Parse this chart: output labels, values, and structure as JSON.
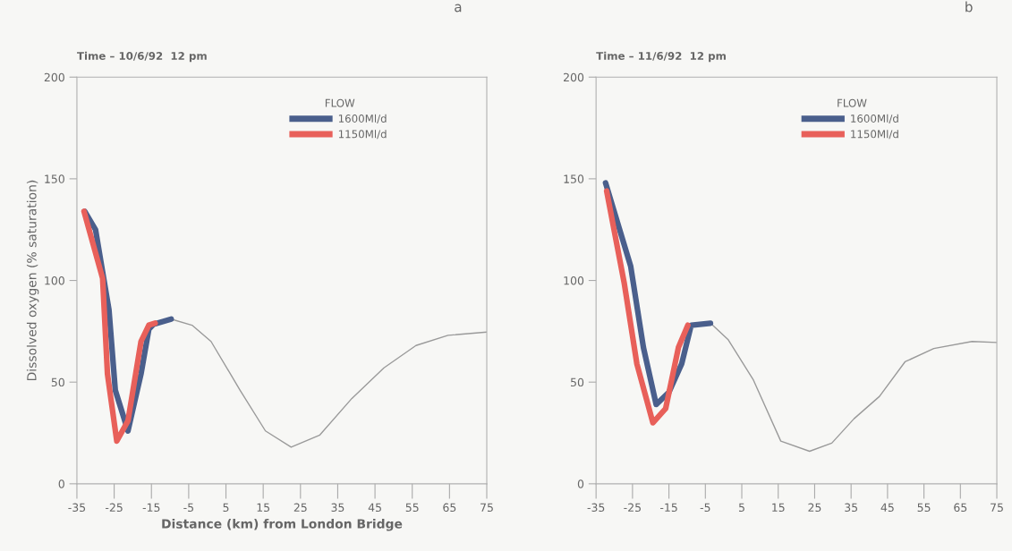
{
  "chart_data": [
    {
      "type": "line",
      "title": "a",
      "subtitle": "Time – 10/6/92  12 pm",
      "xlabel": "Distance (km) from London Bridge",
      "ylabel": "Dissolved oxygen (% saturation)",
      "legend_title": "FLOW",
      "legend": "top right",
      "grid": false,
      "xlim": [
        -35,
        75
      ],
      "xticks": [
        -35,
        -25,
        -15,
        -5,
        5,
        15,
        25,
        35,
        45,
        55,
        65,
        75
      ],
      "ylim": [
        0,
        200
      ],
      "yticks": [
        0,
        50,
        100,
        150,
        200
      ],
      "series": [
        {
          "color": "#9a9a9a",
          "x": [
            -9.7,
            -4.1,
            1,
            8.8,
            15.6,
            22.5,
            30.2,
            38.8,
            47.4,
            56,
            64.6,
            75
          ],
          "values": [
            81,
            78,
            70,
            46,
            26,
            18,
            24,
            42,
            57,
            68,
            73,
            74.6
          ]
        },
        {
          "name": "1600Ml/d",
          "color": "#4a5f8c",
          "x": [
            -32.9,
            -30,
            -26.4,
            -24.7,
            -21.3,
            -17.8,
            -15.7,
            -14.4,
            -9.7
          ],
          "values": [
            134,
            125,
            85.6,
            46,
            26,
            54,
            76,
            78.5,
            81
          ]
        },
        {
          "name": "1150Ml/d",
          "color": "#e8605a",
          "x": [
            -33.1,
            -28.1,
            -26.8,
            -24.3,
            -21.3,
            -17.8,
            -15.7,
            -14
          ],
          "values": [
            134,
            101,
            54,
            21,
            31,
            70,
            78,
            79
          ]
        }
      ]
    },
    {
      "type": "line",
      "title": "b",
      "subtitle": "Time – 11/6/92  12 pm",
      "legend_title": "FLOW",
      "legend": "top right",
      "grid": false,
      "xlim": [
        -35,
        75
      ],
      "xticks": [
        -35,
        -25,
        -15,
        -5,
        5,
        15,
        25,
        35,
        45,
        55,
        65,
        75
      ],
      "ylim": [
        0,
        200
      ],
      "yticks": [
        0,
        50,
        100,
        150,
        200
      ],
      "series": [
        {
          "color": "#9a9a9a",
          "x": [
            -3.6,
            1.2,
            8.2,
            15.7,
            23.6,
            29.7,
            35.8,
            42.8,
            49.8,
            57.7,
            68.2,
            75
          ],
          "values": [
            79,
            71,
            51,
            21,
            16,
            20,
            32,
            43,
            60,
            66.5,
            70,
            69.5
          ]
        },
        {
          "name": "1600Ml/d",
          "color": "#4a5f8c",
          "x": [
            -32.4,
            -25.5,
            -22,
            -18.5,
            -15,
            -11.5,
            -8.9,
            -3.6
          ],
          "values": [
            148,
            107,
            67,
            39,
            45,
            59,
            78,
            79
          ]
        },
        {
          "name": "1150Ml/d",
          "color": "#e8605a",
          "x": [
            -32.1,
            -27.3,
            -23.8,
            -19.4,
            -15.9,
            -12.4,
            -9.8
          ],
          "values": [
            144,
            99,
            59,
            30,
            37,
            67,
            78
          ]
        }
      ]
    }
  ]
}
